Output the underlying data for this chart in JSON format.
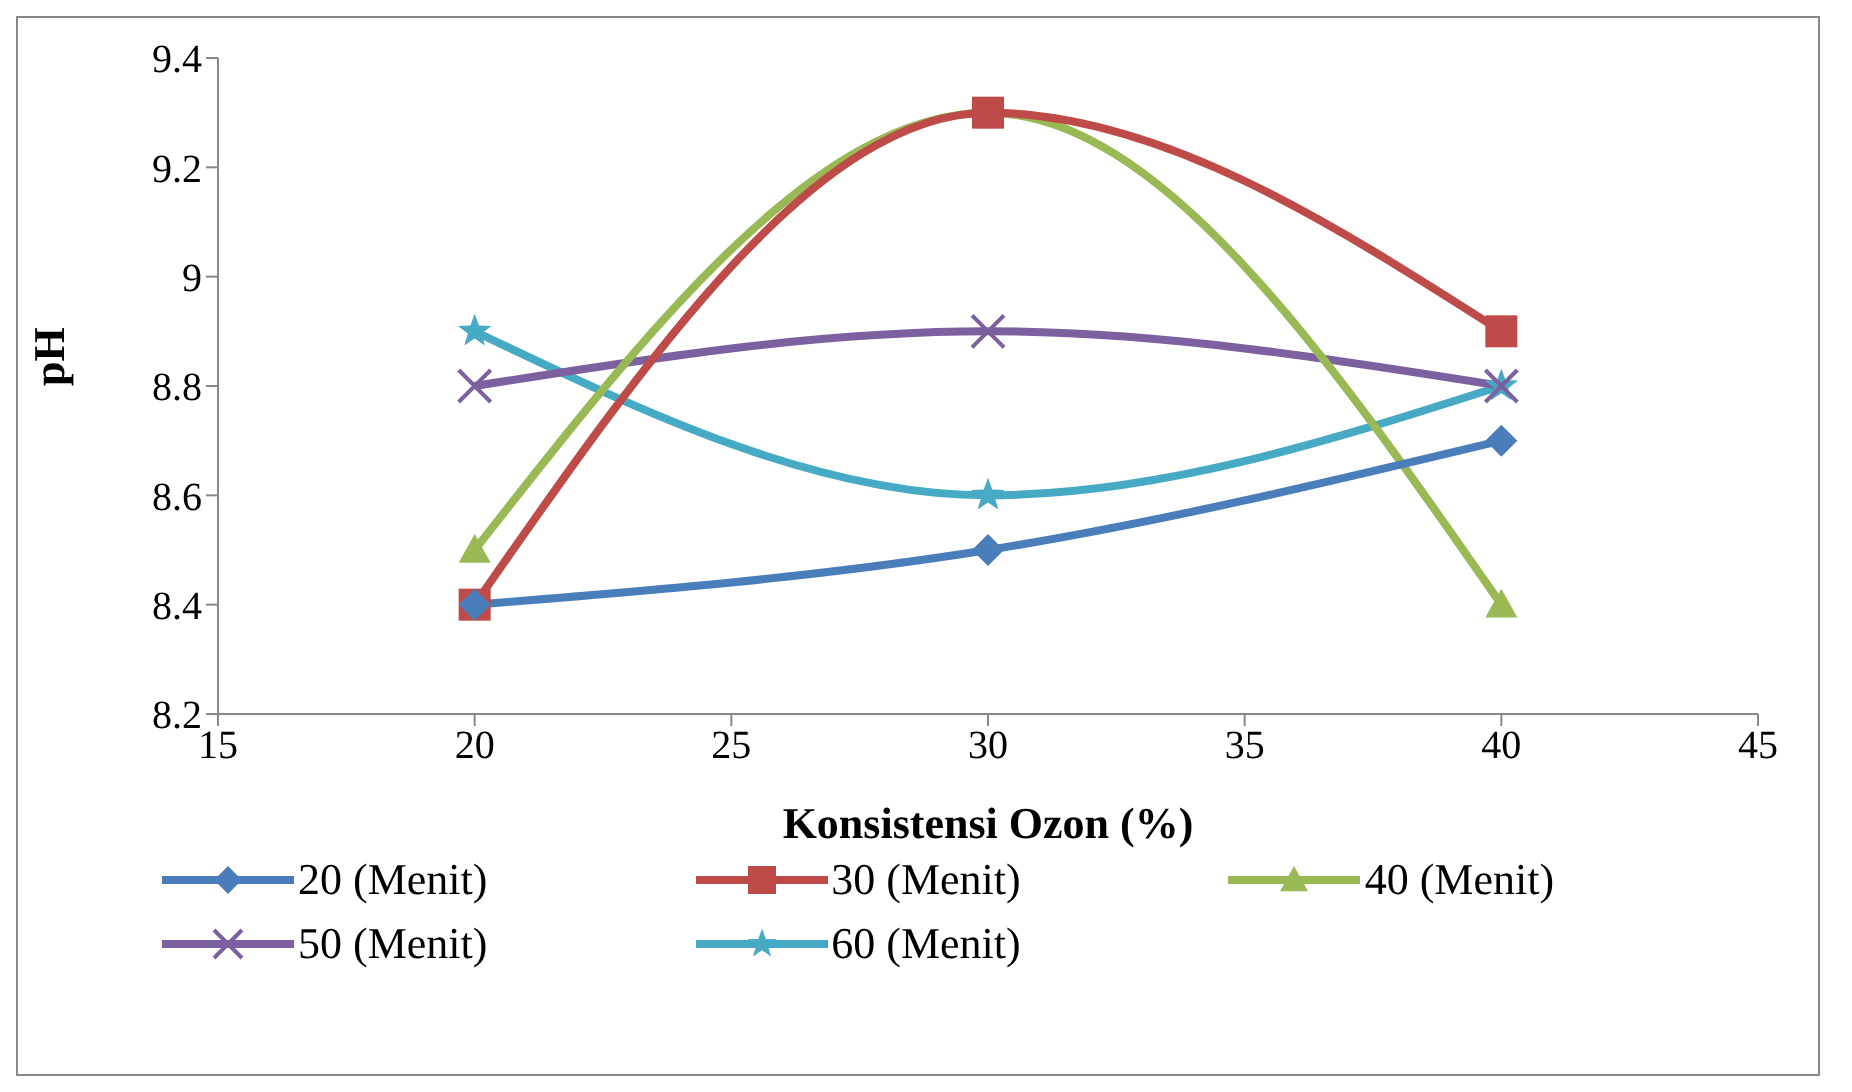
{
  "chart_data": {
    "type": "line",
    "xlabel": "Konsistensi  Ozon (%)",
    "ylabel": "pH",
    "x": [
      20,
      30,
      40
    ],
    "xlim": [
      15,
      45
    ],
    "xticks": [
      15,
      20,
      25,
      30,
      35,
      40,
      45
    ],
    "ylim": [
      8.2,
      9.4
    ],
    "yticks": [
      8.2,
      8.4,
      8.6,
      8.8,
      9,
      9.2,
      9.4
    ],
    "grid": false,
    "legend": "bottom",
    "series": [
      {
        "name": "20 (Menit)",
        "color": "#4a7ebb",
        "values": [
          8.4,
          8.5,
          8.7
        ],
        "marker": "diamond"
      },
      {
        "name": "30 (Menit)",
        "color": "#be4b48",
        "values": [
          8.4,
          9.3,
          8.9
        ],
        "marker": "square"
      },
      {
        "name": "40 (Menit)",
        "color": "#98b954",
        "values": [
          8.5,
          9.3,
          8.4
        ],
        "marker": "triangle"
      },
      {
        "name": "50 (Menit)",
        "color": "#7d60a0",
        "values": [
          8.8,
          8.9,
          8.8
        ],
        "marker": "cross"
      },
      {
        "name": "60 (Menit)",
        "color": "#46aac5",
        "values": [
          8.9,
          8.6,
          8.8
        ],
        "marker": "star"
      }
    ]
  }
}
